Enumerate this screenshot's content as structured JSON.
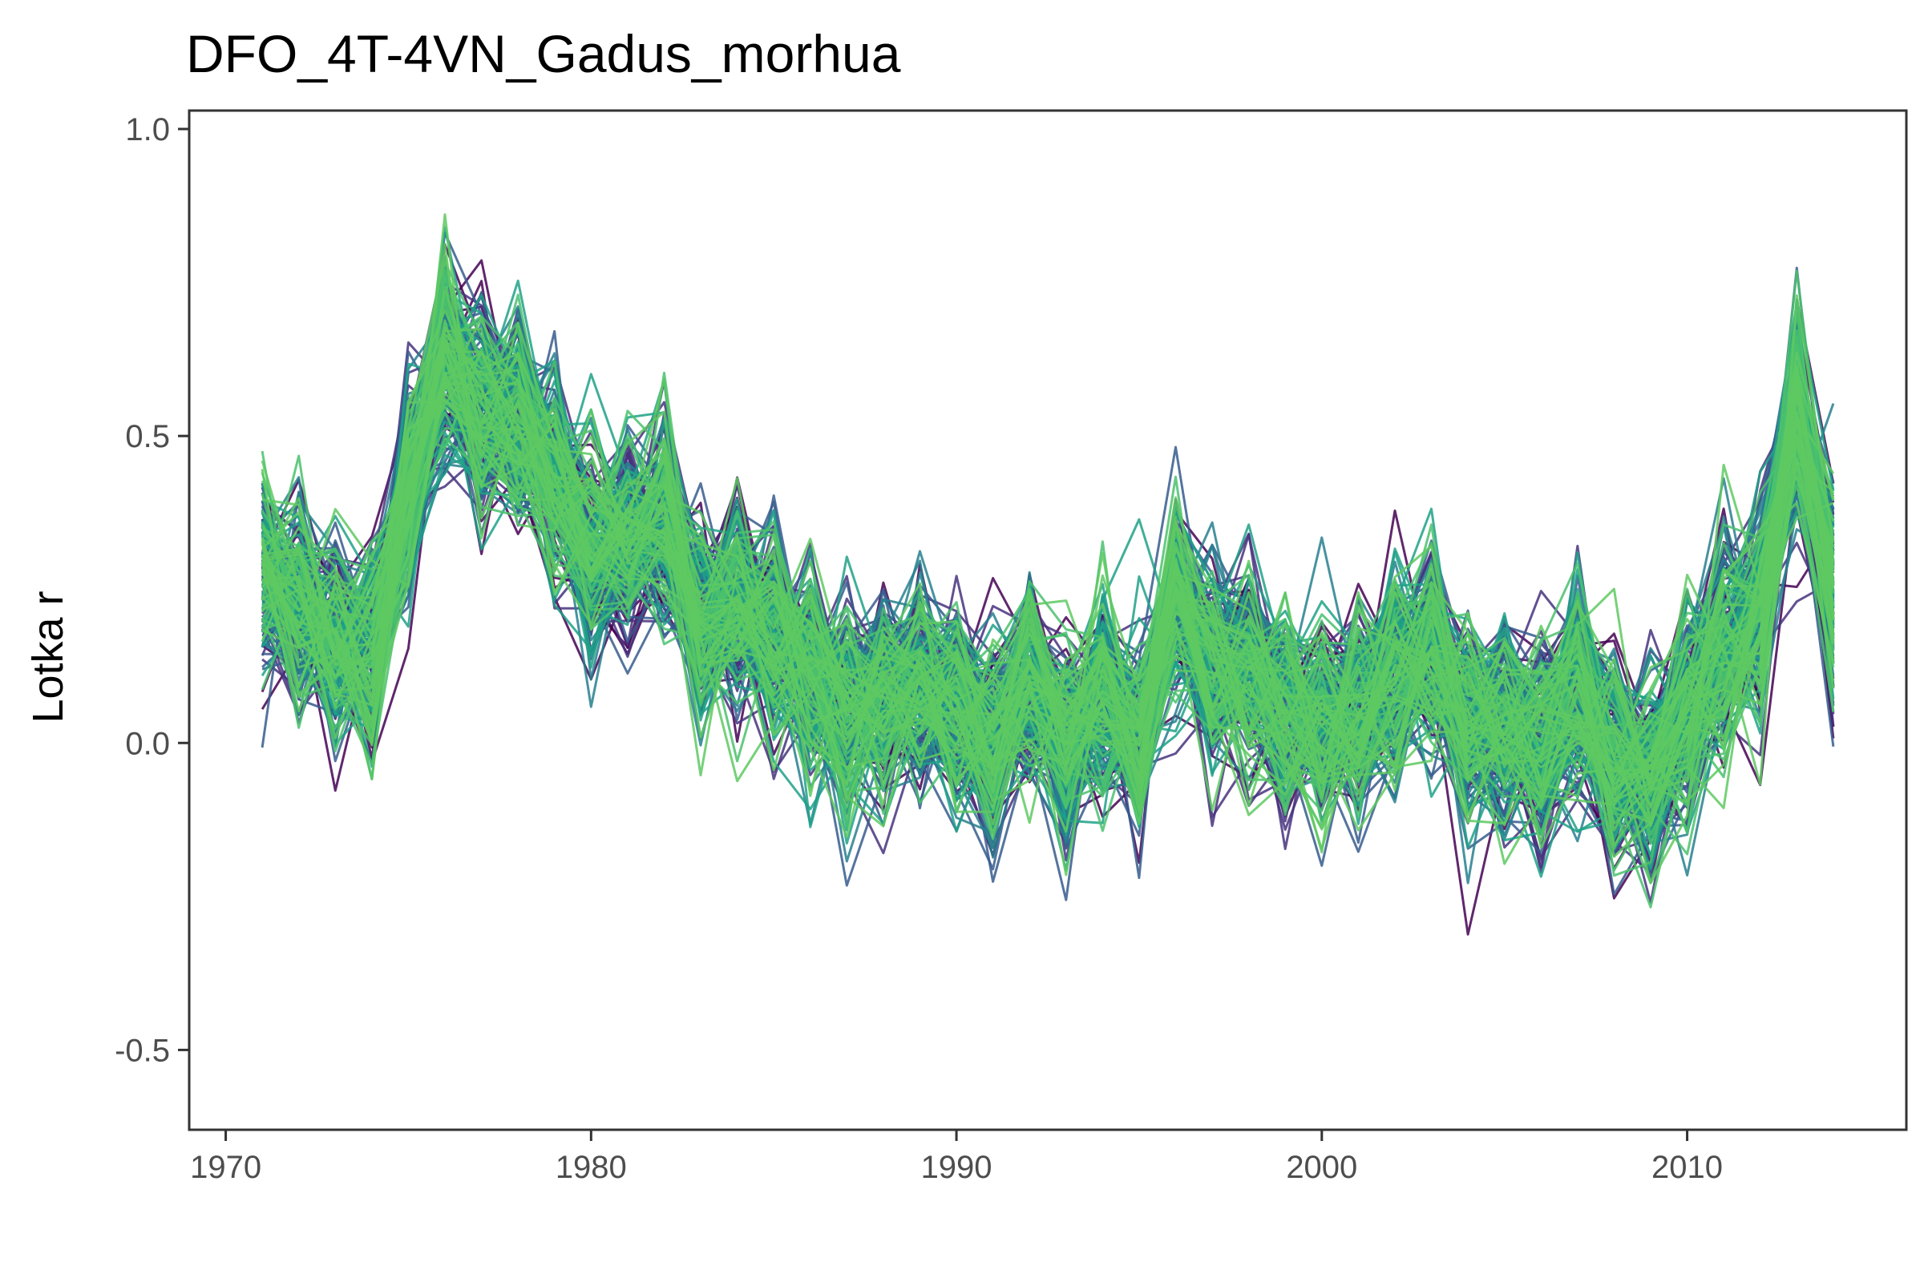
{
  "chart_data": {
    "type": "line",
    "title": "DFO_4T-4VN_Gadus_morhua",
    "xlabel": "",
    "ylabel": "Lotka r",
    "xlim": [
      1969,
      2016
    ],
    "ylim": [
      -0.63,
      1.03
    ],
    "grid": false,
    "legend": "none",
    "x_ticks": [
      1970,
      1980,
      1990,
      2000,
      2010
    ],
    "x_tick_labels": [
      "1970",
      "1980",
      "1990",
      "2000",
      "2010"
    ],
    "y_ticks": [
      1.0,
      0.5,
      0.0,
      -0.5
    ],
    "y_tick_labels": [
      "1.0",
      "0.5",
      "0.0",
      "-0.5"
    ],
    "x": [
      1971,
      1972,
      1973,
      1974,
      1975,
      1976,
      1977,
      1978,
      1979,
      1980,
      1981,
      1982,
      1983,
      1984,
      1985,
      1986,
      1987,
      1988,
      1989,
      1990,
      1991,
      1992,
      1993,
      1994,
      1995,
      1996,
      1997,
      1998,
      1999,
      2000,
      2001,
      2002,
      2003,
      2004,
      2005,
      2006,
      2007,
      2008,
      2009,
      2010,
      2011,
      2012,
      2013,
      2014
    ],
    "central_trajectory": [
      0.28,
      0.23,
      0.17,
      0.15,
      0.4,
      0.62,
      0.55,
      0.52,
      0.43,
      0.32,
      0.33,
      0.36,
      0.2,
      0.22,
      0.16,
      0.12,
      0.05,
      0.07,
      0.1,
      0.06,
      0.0,
      0.09,
      0.0,
      0.07,
      0.0,
      0.25,
      0.12,
      0.12,
      0.05,
      0.03,
      0.06,
      0.1,
      0.15,
      0.03,
      0.02,
      0.0,
      0.09,
      -0.03,
      -0.05,
      0.05,
      0.15,
      0.22,
      0.55,
      0.25
    ],
    "n_series": 220,
    "colors": [
      "#440154",
      "#46337e",
      "#365c8d",
      "#277f8e",
      "#1fa187",
      "#4ac16d",
      "#5ec962"
    ]
  }
}
